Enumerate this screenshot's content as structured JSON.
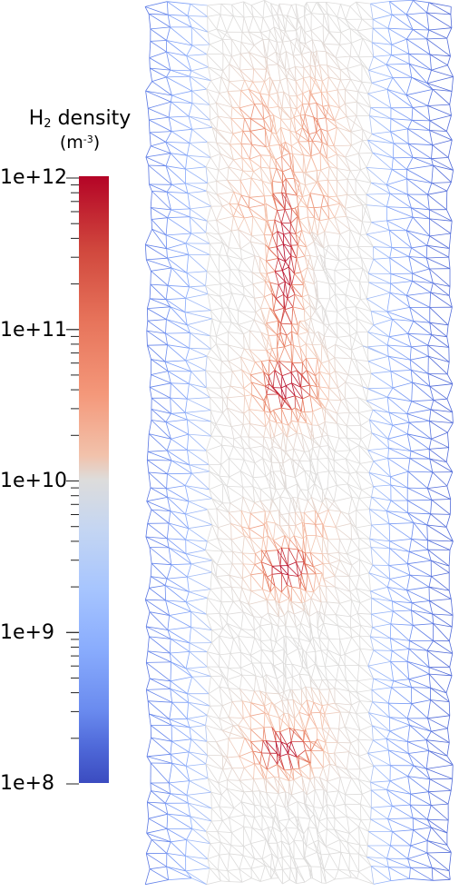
{
  "legend": {
    "title_main": "H",
    "title_sub": "2",
    "title_rest": " density",
    "units_open": "(m",
    "units_sup": "-3",
    "units_close": ")",
    "labels": [
      "1e+12",
      "1e+11",
      "1e+10",
      "1e+9",
      "1e+8"
    ],
    "scale": "log",
    "range": [
      100000000.0,
      1000000000000.0
    ],
    "colormap": "cool-to-warm",
    "colors": {
      "low": "#3b4cc0",
      "mid": "#dddcdb",
      "high": "#b40426"
    }
  }
}
